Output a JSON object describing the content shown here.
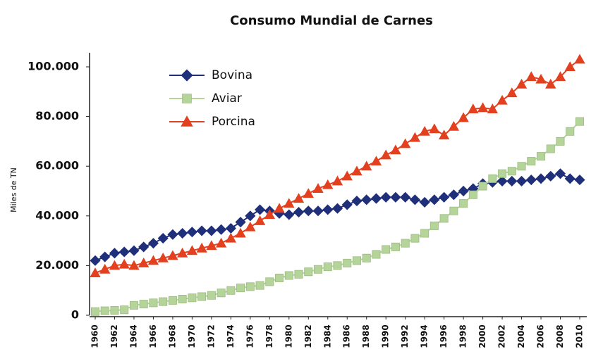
{
  "chart_data": {
    "type": "line",
    "title": "Consumo Mundial de Carnes",
    "y_label": "Miles de TN",
    "x": [
      1960,
      1961,
      1962,
      1963,
      1964,
      1965,
      1966,
      1967,
      1968,
      1969,
      1970,
      1971,
      1972,
      1973,
      1974,
      1975,
      1976,
      1977,
      1978,
      1979,
      1980,
      1981,
      1982,
      1983,
      1984,
      1985,
      1986,
      1987,
      1988,
      1989,
      1990,
      1991,
      1992,
      1993,
      1994,
      1995,
      1996,
      1997,
      1998,
      1999,
      2000,
      2001,
      2002,
      2003,
      2004,
      2005,
      2006,
      2007,
      2008,
      2009,
      2010
    ],
    "xlim": [
      1960,
      2010
    ],
    "xticks": [
      1960,
      1962,
      1964,
      1966,
      1968,
      1970,
      1972,
      1974,
      1976,
      1978,
      1980,
      1982,
      1984,
      1986,
      1988,
      1990,
      1992,
      1994,
      1996,
      1998,
      2000,
      2002,
      2004,
      2006,
      2008,
      2010
    ],
    "ylim": [
      0,
      100000
    ],
    "yticks": [
      {
        "value": 0,
        "label": "0"
      },
      {
        "value": 20000,
        "label": "20.000"
      },
      {
        "value": 40000,
        "label": "40.000"
      },
      {
        "value": 60000,
        "label": "60.000"
      },
      {
        "value": 80000,
        "label": "80.000"
      },
      {
        "value": 100000,
        "label": "100.000"
      }
    ],
    "legend": "top-left",
    "series": [
      {
        "name": "Bovina",
        "color": "#1f2f7a",
        "marker": "diamond",
        "values": [
          22000,
          23500,
          25000,
          25500,
          26000,
          27500,
          29000,
          31000,
          32500,
          33000,
          33500,
          34000,
          34000,
          34500,
          35000,
          37500,
          40000,
          42500,
          42000,
          41000,
          40500,
          41500,
          42000,
          42000,
          42500,
          43000,
          44500,
          46000,
          46500,
          47000,
          47500,
          47500,
          47500,
          46500,
          45500,
          46500,
          47500,
          48500,
          50000,
          51000,
          53000,
          53500,
          54000,
          54000,
          54000,
          54500,
          55000,
          56000,
          57000,
          55000,
          54500
        ]
      },
      {
        "name": "Aviar",
        "color": "#b5d49a",
        "marker": "square",
        "values": [
          1500,
          1800,
          2000,
          2200,
          4000,
          4500,
          5000,
          5500,
          6000,
          6500,
          7000,
          7500,
          8000,
          9000,
          10000,
          11000,
          11500,
          12000,
          13500,
          15000,
          16000,
          16500,
          17500,
          18500,
          19500,
          20000,
          21000,
          22000,
          23000,
          24500,
          26500,
          27500,
          29000,
          31000,
          33000,
          36000,
          39000,
          42000,
          45000,
          48500,
          52000,
          55000,
          57000,
          58000,
          60000,
          62000,
          64000,
          67000,
          70000,
          74000,
          78000
        ]
      },
      {
        "name": "Porcina",
        "color": "#e2401f",
        "marker": "triangle",
        "values": [
          17000,
          18500,
          20000,
          20500,
          20000,
          21000,
          22000,
          23000,
          24000,
          25000,
          26000,
          27000,
          28000,
          29000,
          31000,
          33000,
          35500,
          38000,
          40500,
          43000,
          45000,
          47000,
          49000,
          51000,
          52500,
          54000,
          56000,
          58000,
          60000,
          62000,
          64500,
          66500,
          69000,
          71500,
          74000,
          75000,
          72500,
          76000,
          79500,
          83000,
          83500,
          83000,
          86500,
          89500,
          93000,
          96000,
          95000,
          93000,
          96000,
          100000,
          103000
        ]
      }
    ]
  }
}
